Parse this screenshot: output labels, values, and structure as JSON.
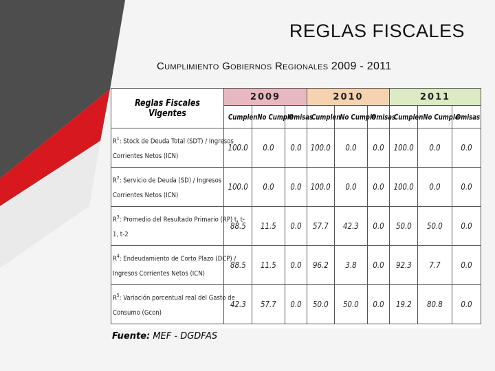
{
  "title": "REGLAS FISCALES",
  "subtitle": {
    "text": "Cumplimiento Gobiernos Regionales",
    "years": "2009 - 2011"
  },
  "table": {
    "header": "Reglas Fiscales Vigentes",
    "years": [
      "2009",
      "2010",
      "2011"
    ],
    "subheaders": [
      "Cumplen",
      "No Cumple",
      "Omisas"
    ],
    "rows": [
      {
        "sup": "1",
        "label_line1": ": Stock de Deuda Total (SDT) / Ingresos",
        "label_line2": "Corrientes Netos (ICN)",
        "values": [
          "100.0",
          "0.0",
          "0.0",
          "100.0",
          "0.0",
          "0.0",
          "100.0",
          "0.0",
          "0.0"
        ]
      },
      {
        "sup": "2",
        "label_line1": ": Servicio de Deuda (SD) / Ingresos",
        "label_line2": "Corrientes Netos (ICN)",
        "values": [
          "100.0",
          "0.0",
          "0.0",
          "100.0",
          "0.0",
          "0.0",
          "100.0",
          "0.0",
          "0.0"
        ]
      },
      {
        "sup": "3",
        "label_line1": ": Promedio del Resultado Primario (RP) t, t-",
        "label_line2": "1, t-2",
        "values": [
          "88.5",
          "11.5",
          "0.0",
          "57.7",
          "42.3",
          "0.0",
          "50.0",
          "50.0",
          "0.0"
        ]
      },
      {
        "sup": "4",
        "label_line1": ": Endeudamiento de Corto Plazo (DCP) /",
        "label_line2": "Ingresos Corrientes Netos (ICN)",
        "values": [
          "88.5",
          "11.5",
          "0.0",
          "96.2",
          "3.8",
          "0.0",
          "92.3",
          "7.7",
          "0.0"
        ]
      },
      {
        "sup": "5",
        "label_line1": ": Variación porcentual real del Gasto de",
        "label_line2": "Consumo (Gcon)",
        "values": [
          "42.3",
          "57.7",
          "0.0",
          "50.0",
          "50.0",
          "0.0",
          "19.2",
          "80.8",
          "0.0"
        ]
      }
    ],
    "rule_letter": "R"
  },
  "source": {
    "label": "Fuente:",
    "value": "MEF - DGDFAS"
  },
  "colors": {
    "dark_band": "#4d4d4d",
    "red_band": "#d7191f",
    "y2009": "#e8b8c0",
    "y2010": "#f6d2b0",
    "y2011": "#dcebc4"
  }
}
